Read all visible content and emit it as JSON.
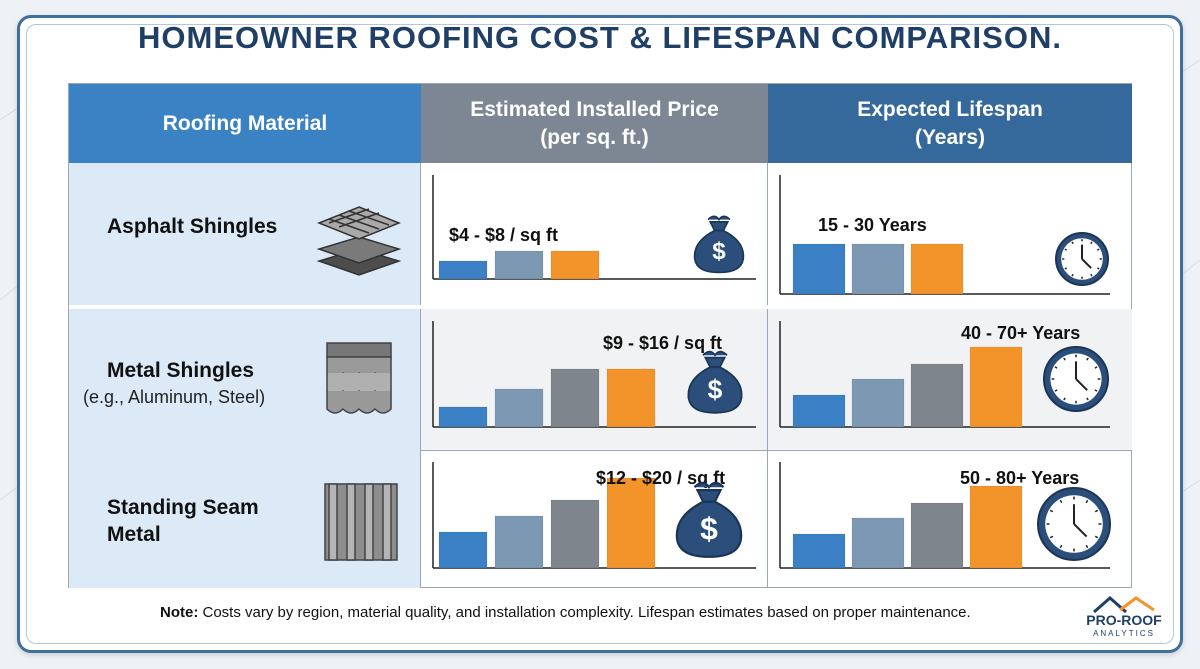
{
  "title": "HOMEOWNER ROOFING COST & LIFESPAN COMPARISON.",
  "header": {
    "col1": "Roofing Material",
    "col2_line1": "Estimated Installed Price",
    "col2_line2": "(per sq. ft.)",
    "col3_line1": "Expected Lifespan",
    "col3_line2": "(Years)"
  },
  "rows": [
    {
      "name": "Asphalt Shingles",
      "name2": "",
      "sub": ""
    },
    {
      "name": "Metal Shingles",
      "name2": "",
      "sub": "(e.g., Aluminum, Steel)"
    },
    {
      "name": "Standing Seam",
      "name2": "Metal",
      "sub": ""
    }
  ],
  "chart_data": [
    {
      "type": "bar",
      "panel": "price",
      "row": "Asphalt Shingles",
      "label": "$4 - $8 / sq ft",
      "values": [
        0.18,
        0.28,
        0.28
      ]
    },
    {
      "type": "bar",
      "panel": "price",
      "row": "Metal Shingles",
      "label": "$9 - $16 / sq ft",
      "values": [
        0.2,
        0.38,
        0.58,
        0.58
      ]
    },
    {
      "type": "bar",
      "panel": "price",
      "row": "Standing Seam Metal",
      "label": "$12 - $20 / sq ft",
      "values": [
        0.36,
        0.52,
        0.68,
        0.9
      ]
    },
    {
      "type": "bar",
      "panel": "lifespan",
      "row": "Asphalt Shingles",
      "label": "15 - 30 Years",
      "values": [
        0.5,
        0.5,
        0.5
      ]
    },
    {
      "type": "bar",
      "panel": "lifespan",
      "row": "Metal Shingles",
      "label": "40 - 70+ Years",
      "values": [
        0.32,
        0.48,
        0.63,
        0.8
      ]
    },
    {
      "type": "bar",
      "panel": "lifespan",
      "row": "Standing Seam Metal",
      "label": "50 - 80+ Years",
      "values": [
        0.34,
        0.5,
        0.65,
        0.82
      ]
    }
  ],
  "colors": {
    "blue": "#3b7fc4",
    "steel": "#7c98b3",
    "gray": "#7e858d",
    "orange": "#f2942a",
    "navy": "#2b4f7a"
  },
  "icons": [
    "stacked-shingles-icon",
    "scale-shingles-icon",
    "standing-seam-icon",
    "money-bag-icon",
    "clock-icon"
  ],
  "note": {
    "bold": "Note:",
    "text": " Costs vary by region, material quality, and installation complexity. Lifespan estimates based on proper maintenance."
  },
  "logo": {
    "name": "PRO-ROOF",
    "sub": "ANALYTICS"
  }
}
